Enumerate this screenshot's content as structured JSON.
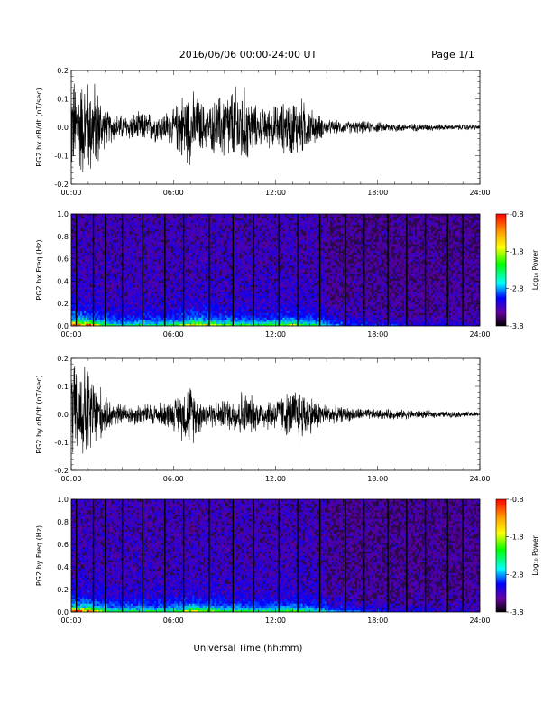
{
  "header": {
    "title": "2016/06/06  00:00-24:00 UT",
    "page": "Page 1/1"
  },
  "footer": {
    "xlabel": "Universal Time (hh:mm)"
  },
  "colors": {
    "trace": "#000000",
    "spectrogram_background": "#2a0a4a",
    "colorbar": [
      "#ff0000",
      "#ffff00",
      "#00ff00",
      "#00ffff",
      "#0000ff",
      "#6a00a0",
      "#000000"
    ]
  },
  "chart_data": [
    {
      "type": "line",
      "ylabel": "PG2 bx dB/dt (nT/sec)",
      "ylim": [
        -0.2,
        0.2
      ],
      "yticks": [
        -0.2,
        -0.1,
        0.0,
        0.1,
        0.2
      ],
      "ytick_labels": [
        "-0.2",
        "-0.1",
        "0.0",
        "0.1",
        "0.2"
      ],
      "xlim": [
        "00:00",
        "24:00"
      ],
      "xticks": [
        "00:00",
        "06:00",
        "12:00",
        "18:00",
        "24:00"
      ],
      "envelope_hours": [
        0,
        0.5,
        1,
        1.5,
        2,
        3,
        4,
        5,
        6,
        6.5,
        7,
        7.5,
        8,
        9,
        9.5,
        10,
        11,
        12,
        13,
        13.5,
        14,
        15,
        16,
        17,
        18,
        19,
        20,
        21,
        22,
        23,
        24
      ],
      "envelope_amplitude": [
        0.2,
        0.2,
        0.2,
        0.18,
        0.07,
        0.05,
        0.06,
        0.06,
        0.07,
        0.14,
        0.15,
        0.12,
        0.08,
        0.15,
        0.16,
        0.18,
        0.07,
        0.09,
        0.12,
        0.12,
        0.08,
        0.03,
        0.025,
        0.025,
        0.02,
        0.02,
        0.015,
        0.015,
        0.012,
        0.012,
        0.01
      ],
      "grid": false
    },
    {
      "type": "heatmap",
      "ylabel": "PG2 bx Freq (Hz)",
      "ylim": [
        0.0,
        1.0
      ],
      "yticks": [
        0.0,
        0.2,
        0.4,
        0.6,
        0.8,
        1.0
      ],
      "ytick_labels": [
        "0.0",
        "0.2",
        "0.4",
        "0.6",
        "0.8",
        "1.0"
      ],
      "xlim": [
        "00:00",
        "24:00"
      ],
      "xticks": [
        "00:00",
        "06:00",
        "12:00",
        "18:00",
        "24:00"
      ],
      "colorbar_label": "Log₁₀ Power",
      "colorbar_range": [
        -3.8,
        -0.8
      ],
      "colorbar_tick_labels": [
        "-0.8",
        "-1.8",
        "-2.8",
        "-3.8"
      ],
      "colorbar_ticks": [
        -0.8,
        -1.8,
        -2.8,
        -3.8
      ],
      "dark_lines_hours": [
        0.3,
        1.3,
        2.0,
        3.0,
        4.2,
        5.5,
        6.6,
        8.1,
        9.5,
        10.7,
        12.2,
        13.3,
        14.6,
        16.1,
        17.2,
        18.6,
        19.7,
        20.8,
        22.1,
        23.0
      ],
      "activity_hours": [
        0,
        1,
        2,
        3,
        4,
        5,
        6,
        7,
        8,
        9,
        10,
        11,
        12,
        13,
        14,
        15,
        16,
        17,
        18,
        19,
        20,
        21,
        22,
        23,
        24
      ],
      "activity_level": [
        1.0,
        0.9,
        0.55,
        0.45,
        0.5,
        0.5,
        0.55,
        0.8,
        0.75,
        0.6,
        0.6,
        0.55,
        0.6,
        0.7,
        0.55,
        0.4,
        0.3,
        0.25,
        0.2,
        0.18,
        0.15,
        0.15,
        0.12,
        0.12,
        0.1
      ]
    },
    {
      "type": "line",
      "ylabel": "PG2 by dB/dt (nT/sec)",
      "ylim": [
        -0.2,
        0.2
      ],
      "yticks": [
        -0.2,
        -0.1,
        0.0,
        0.1,
        0.2
      ],
      "ytick_labels": [
        "-0.2",
        "-0.1",
        "0.0",
        "0.1",
        "0.2"
      ],
      "xlim": [
        "00:00",
        "24:00"
      ],
      "xticks": [
        "00:00",
        "06:00",
        "12:00",
        "18:00",
        "24:00"
      ],
      "envelope_hours": [
        0,
        0.5,
        1,
        1.5,
        2,
        3,
        4,
        5,
        6,
        6.5,
        7,
        7.5,
        8,
        9,
        9.5,
        10,
        11,
        12,
        13,
        13.3,
        14,
        15,
        16,
        17,
        18,
        19,
        20,
        21,
        22,
        23,
        24
      ],
      "envelope_amplitude": [
        0.2,
        0.2,
        0.2,
        0.15,
        0.07,
        0.04,
        0.045,
        0.045,
        0.06,
        0.1,
        0.13,
        0.08,
        0.05,
        0.06,
        0.07,
        0.1,
        0.06,
        0.07,
        0.1,
        0.12,
        0.08,
        0.04,
        0.03,
        0.025,
        0.02,
        0.02,
        0.018,
        0.015,
        0.012,
        0.012,
        0.01
      ],
      "grid": false
    },
    {
      "type": "heatmap",
      "ylabel": "PG2 by Freq (Hz)",
      "ylim": [
        0.0,
        1.0
      ],
      "yticks": [
        0.0,
        0.2,
        0.4,
        0.6,
        0.8,
        1.0
      ],
      "ytick_labels": [
        "0.0",
        "0.2",
        "0.4",
        "0.6",
        "0.8",
        "1.0"
      ],
      "xlim": [
        "00:00",
        "24:00"
      ],
      "xticks": [
        "00:00",
        "06:00",
        "12:00",
        "18:00",
        "24:00"
      ],
      "colorbar_label": "Log₁₀ Power",
      "colorbar_range": [
        -3.8,
        -0.8
      ],
      "colorbar_tick_labels": [
        "-0.8",
        "-1.8",
        "-2.8",
        "-3.8"
      ],
      "colorbar_ticks": [
        -0.8,
        -1.8,
        -2.8,
        -3.8
      ],
      "dark_lines_hours": [
        0.3,
        1.3,
        2.0,
        3.0,
        4.2,
        5.5,
        6.6,
        8.1,
        9.5,
        10.7,
        12.2,
        13.3,
        14.6,
        16.1,
        17.2,
        18.6,
        19.7,
        20.8,
        22.1,
        23.0
      ],
      "activity_hours": [
        0,
        1,
        2,
        3,
        4,
        5,
        6,
        7,
        8,
        9,
        10,
        11,
        12,
        13,
        14,
        15,
        16,
        17,
        18,
        19,
        20,
        21,
        22,
        23,
        24
      ],
      "activity_level": [
        1.0,
        0.9,
        0.6,
        0.5,
        0.55,
        0.5,
        0.55,
        0.75,
        0.7,
        0.55,
        0.55,
        0.5,
        0.55,
        0.6,
        0.5,
        0.4,
        0.3,
        0.25,
        0.2,
        0.18,
        0.15,
        0.14,
        0.12,
        0.12,
        0.1
      ]
    }
  ]
}
